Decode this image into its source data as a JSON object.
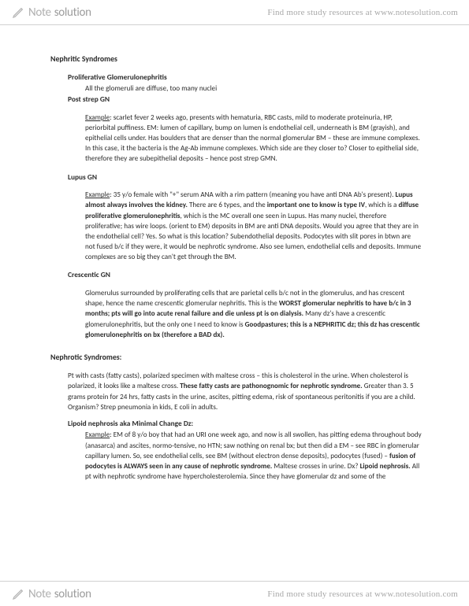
{
  "brand": {
    "main": "Note",
    "sub": "solution"
  },
  "tagline": "Find more study resources at www.notesolution.com",
  "colors": {
    "text": "#2b2b2b",
    "muted": "#a8a8a8",
    "border": "#d0d0d0",
    "bg": "#ffffff"
  },
  "doc": {
    "h1": "Nephritic Syndromes",
    "s1": {
      "title": "Proliferative Glomerulonephritis",
      "line": "All the glomeruli are diffuse, too many nuclei",
      "subtitle": "Post strep GN",
      "para_html": "<u>Example</u>: scarlet fever 2 weeks ago, presents with hematuria, RBC casts, mild to moderate proteinuria, HP, periorbital puffiness. EM: lumen of capillary, bump on lumen is endothelial cell, underneath is BM (grayish), and epithelial cells under. Has boulders that are denser than the normal glomerular BM – these are immune complexes. In this case, it the bacteria is the Ag-Ab immune complexes. Which side are they closer to? Closer to epithelial side, therefore they are subepithelial deposits – hence post strep GMN."
    },
    "s2": {
      "title": "Lupus GN",
      "para_html": "<u>Example</u>: 35 y/o female with \"+\" serum ANA with a rim pattern (meaning you have anti DNA Ab's present). <b>Lupus almost always involves the kidney.</b> There are 6 types, and the <b>important one to know is type IV</b>, which is a <b>diffuse proliferative glomerulonephritis</b>, which is the MC overall one seen in Lupus. Has many nuclei, therefore proliferative; has wire loops. (orient to EM) deposits in BM are anti DNA deposits. Would you agree that they are in the endothelial cell? Yes. So what is this location? Subendothelial deposits. Podocytes with slit pores in btwn are not fused b/c if they were, it would be nephrotic syndrome. Also see lumen, endothelial cells and deposits. Immune complexes are so big they can't get through the BM."
    },
    "s3": {
      "title": "Crescentic GN",
      "para_html": "Glomerulus surrounded by proliferating cells that are parietal cells b/c not in the glomerulus, and has crescent shape, hence the name crescentic glomerular nephritis. This is the <b>WORST glomerular nephritis to have b/c in 3 months; pts will go into acute renal failure and die unless pt is on dialysis.</b> Many dz's have a crescentic glomerulonephritis, but the only one I need to know is <b>Goodpastures; this is a NEPHRITIC dz; this dz has crescentic glomerulonephritis on bx (therefore a BAD dx).</b>"
    },
    "h1b": "Nephrotic Syndromes:",
    "s4": {
      "para_html": "Pt with casts (fatty casts), polarized specimen with maltese cross – this is cholesterol in the urine. When cholesterol is polarized, it looks like a maltese cross. <b>These fatty casts are pathonognomic for nephrotic syndrome.</b> Greater than 3. 5 grams protein for 24 hrs, fatty casts in the urine, ascites, pitting edema, risk of spontaneous peritonitis if you are a child. Organism? Strep pneumonia in kids, E coli in adults."
    },
    "s5": {
      "title": "Lipoid nephrosis aka Minimal Change Dz:",
      "para_html": "<u>Example</u>: EM of 8 y/o boy that had an URI one week ago, and now is all swollen, has pitting edema throughout body (anasarca) and ascites, normo-tensive, no HTN; saw nothing on renal bx; but then did a EM – see RBC in glomerular capillary lumen. So, see endothelial cells, see BM (without electron dense deposits), podocytes (fused) – <b>fusion of podocytes is ALWAYS seen in any cause of nephrotic syndrome.</b> Maltese crosses in urine. Dx? <b>Lipoid nephrosis.</b> All pt with nephrotic syndrome have hypercholesterolemia. Since they have glomerular dz and some of the"
    }
  }
}
